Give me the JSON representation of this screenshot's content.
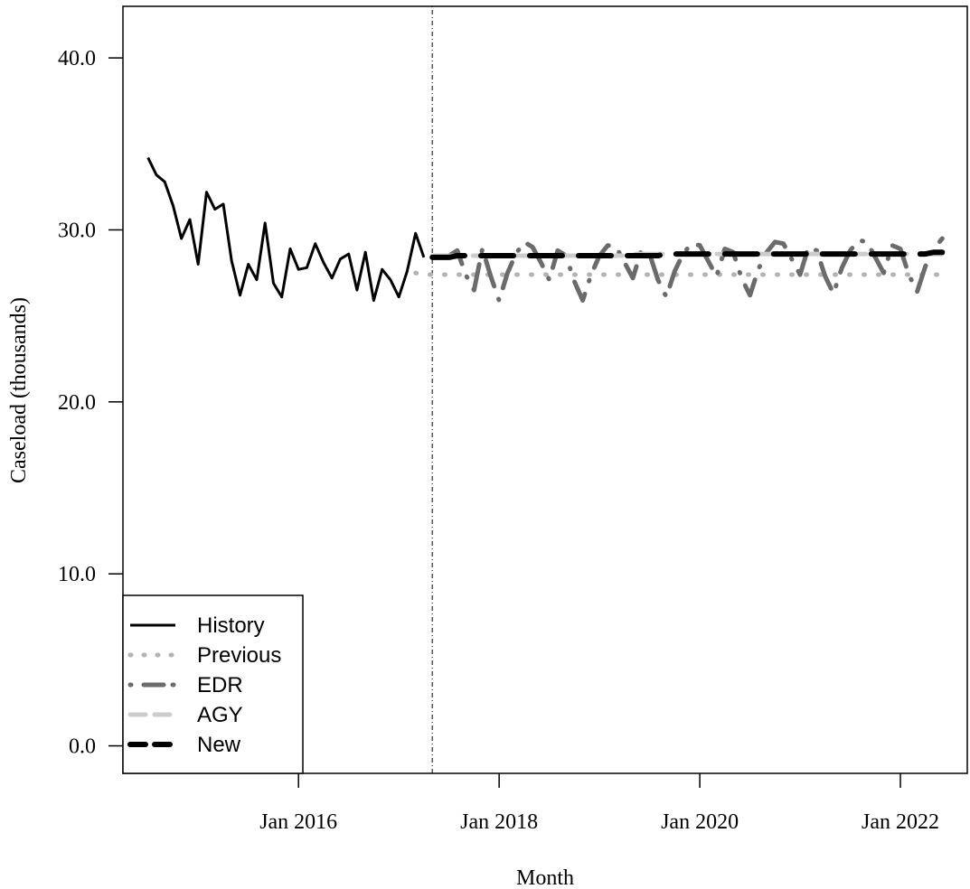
{
  "chart_data": {
    "type": "line",
    "title": "",
    "xlabel": "Month",
    "ylabel": "Caseload (thousands)",
    "xlim": [
      "2014-04",
      "2022-09"
    ],
    "ylim": [
      -1.6,
      43
    ],
    "y_ticks": [
      {
        "value": 0,
        "label": "0.0"
      },
      {
        "value": 10,
        "label": "10.0"
      },
      {
        "value": 20,
        "label": "20.0"
      },
      {
        "value": 30,
        "label": "30.0"
      },
      {
        "value": 40,
        "label": "40.0"
      }
    ],
    "x_ticks": [
      {
        "value": "2016-01",
        "label": "Jan 2016"
      },
      {
        "value": "2018-01",
        "label": "Jan 2018"
      },
      {
        "value": "2020-01",
        "label": "Jan 2020"
      },
      {
        "value": "2022-01",
        "label": "Jan 2022"
      }
    ],
    "forecast_start_marker": "2017-05",
    "legend_position": "bottom-left",
    "series": [
      {
        "name": "History",
        "style": "solid",
        "color": "#000000",
        "width": 3,
        "start": "2014-07",
        "values": [
          34.2,
          33.2,
          32.8,
          31.4,
          29.5,
          30.6,
          28.0,
          32.2,
          31.2,
          31.5,
          28.2,
          26.2,
          28.0,
          27.1,
          30.4,
          26.9,
          26.1,
          28.9,
          27.7,
          27.8,
          29.2,
          28.1,
          27.2,
          28.3,
          28.6,
          26.5,
          28.7,
          25.9,
          27.7,
          27.1,
          26.1,
          27.6,
          29.8,
          28.4
        ]
      },
      {
        "name": "Previous",
        "style": "dotted",
        "color": "#b3b3b3",
        "width": 5,
        "start": "2017-03",
        "values": [
          27.5,
          27.4,
          27.4,
          27.4,
          27.4,
          27.4,
          27.4,
          27.4,
          27.4,
          27.4,
          27.4,
          27.4,
          27.4,
          27.4,
          27.4,
          27.4,
          27.4,
          27.4,
          27.4,
          27.4,
          27.4,
          27.4,
          27.4,
          27.4,
          27.4,
          27.4,
          27.4,
          27.4,
          27.4,
          27.4,
          27.4,
          27.4,
          27.4,
          27.4,
          27.4,
          27.4,
          27.4,
          27.4,
          27.4,
          27.4,
          27.4,
          27.4,
          27.4,
          27.4,
          27.4,
          27.4,
          27.4,
          27.4,
          27.4,
          27.4,
          27.4,
          27.4,
          27.4,
          27.4,
          27.4,
          27.4,
          27.4,
          27.4,
          27.4,
          27.4,
          27.4,
          27.4,
          27.4,
          27.4,
          27.4
        ]
      },
      {
        "name": "EDR",
        "style": "dot-dash",
        "color": "#6b6b6b",
        "width": 5,
        "start": "2017-05",
        "values": [
          28.4,
          28.3,
          28.5,
          28.8,
          27.4,
          26.5,
          28.9,
          27.3,
          25.9,
          27.5,
          28.6,
          29.3,
          29.0,
          28.1,
          27.1,
          28.8,
          28.5,
          27.0,
          25.9,
          27.4,
          28.5,
          29.1,
          29.0,
          28.1,
          27.2,
          28.8,
          28.6,
          27.1,
          26.1,
          27.6,
          28.6,
          29.2,
          29.1,
          28.2,
          27.3,
          28.9,
          28.7,
          27.2,
          26.2,
          27.7,
          28.7,
          29.3,
          29.2,
          28.3,
          27.4,
          29.0,
          28.8,
          27.3,
          26.3,
          27.8,
          28.8,
          29.4,
          29.3,
          28.4,
          27.5,
          29.1,
          28.9,
          27.4,
          26.4,
          27.9,
          28.9,
          29.5
        ]
      },
      {
        "name": "AGY",
        "style": "dashed",
        "color": "#cccccc",
        "width": 5,
        "start": "2017-05",
        "values": [
          28.5,
          28.5,
          28.5,
          28.5,
          28.5,
          28.5,
          28.5,
          28.5,
          28.5,
          28.5,
          28.5,
          28.5,
          28.5,
          28.5,
          28.5,
          28.5,
          28.5,
          28.5,
          28.5,
          28.5,
          28.5,
          28.5,
          28.5,
          28.5,
          28.6,
          28.6,
          28.6,
          28.6,
          28.6,
          28.6,
          28.6,
          28.6,
          28.6,
          28.6,
          28.6,
          28.6,
          28.6,
          28.6,
          28.6,
          28.6,
          28.6,
          28.6,
          28.6,
          28.6,
          28.6,
          28.6,
          28.6,
          28.6,
          28.6,
          28.6,
          28.6,
          28.6,
          28.6,
          28.6,
          28.6,
          28.6,
          28.6,
          28.6,
          28.6,
          28.6,
          28.6,
          28.6
        ]
      },
      {
        "name": "New",
        "style": "dashed",
        "color": "#000000",
        "width": 6,
        "start": "2017-05",
        "values": [
          28.4,
          28.4,
          28.4,
          28.5,
          28.5,
          28.5,
          28.5,
          28.5,
          28.5,
          28.5,
          28.5,
          28.5,
          28.5,
          28.5,
          28.5,
          28.5,
          28.5,
          28.5,
          28.5,
          28.5,
          28.5,
          28.5,
          28.5,
          28.5,
          28.5,
          28.5,
          28.5,
          28.5,
          28.6,
          28.6,
          28.6,
          28.6,
          28.6,
          28.6,
          28.6,
          28.6,
          28.6,
          28.6,
          28.6,
          28.6,
          28.6,
          28.6,
          28.6,
          28.6,
          28.6,
          28.6,
          28.6,
          28.6,
          28.6,
          28.6,
          28.6,
          28.6,
          28.6,
          28.6,
          28.6,
          28.6,
          28.6,
          28.6,
          28.6,
          28.6,
          28.7,
          28.7
        ]
      }
    ]
  }
}
